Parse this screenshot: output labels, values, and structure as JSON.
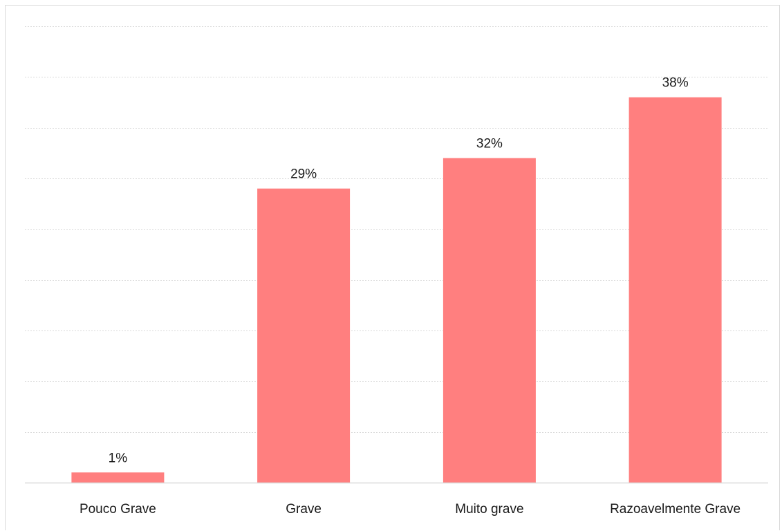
{
  "chart_data": {
    "type": "bar",
    "title": "",
    "xlabel": "",
    "ylabel": "",
    "categories": [
      "Pouco Grave",
      "Grave",
      "Muito grave",
      "Razoavelmente Grave"
    ],
    "values": [
      1,
      29,
      32,
      38
    ],
    "value_labels": [
      "1%",
      "29%",
      "32%",
      "38%"
    ],
    "ylim": [
      0,
      45
    ],
    "ytick_step": 5,
    "y_axis_labels_visible": false,
    "grid": true,
    "legend": "none",
    "bar_color": "#ff7f7f"
  }
}
